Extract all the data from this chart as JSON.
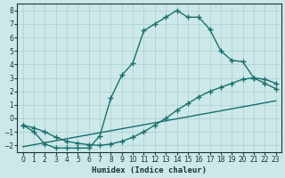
{
  "xlabel": "Humidex (Indice chaleur)",
  "bg_color": "#cce8e8",
  "line_color": "#1a6e6e",
  "grid_color": "#aacfcf",
  "xlim": [
    -0.5,
    23.5
  ],
  "ylim": [
    -2.5,
    8.5
  ],
  "xticks": [
    0,
    1,
    2,
    3,
    4,
    5,
    6,
    7,
    8,
    9,
    10,
    11,
    12,
    13,
    14,
    15,
    16,
    17,
    18,
    19,
    20,
    21,
    22,
    23
  ],
  "yticks": [
    -2,
    -1,
    0,
    1,
    2,
    3,
    4,
    5,
    6,
    7,
    8
  ],
  "line1_x": [
    0,
    1,
    2,
    3,
    4,
    5,
    6,
    7,
    8,
    9,
    10,
    11,
    12,
    13,
    14,
    15,
    16,
    17,
    18,
    19,
    20,
    21,
    22,
    23
  ],
  "line1_y": [
    -0.5,
    -1.0,
    -1.9,
    -2.2,
    -2.2,
    -2.2,
    -2.2,
    -1.3,
    1.5,
    3.2,
    4.1,
    6.5,
    7.0,
    7.5,
    8.0,
    7.5,
    7.5,
    6.6,
    5.0,
    4.3,
    4.2,
    3.0,
    2.6,
    2.2
  ],
  "line2_x": [
    0,
    1,
    2,
    3,
    4,
    5,
    6,
    7,
    8,
    9,
    10,
    11,
    12,
    13,
    14,
    15,
    16,
    17,
    18,
    19,
    20,
    21,
    22,
    23
  ],
  "line2_y": [
    -0.5,
    -0.7,
    -1.0,
    -1.4,
    -1.7,
    -1.85,
    -1.95,
    -2.0,
    -1.9,
    -1.7,
    -1.4,
    -1.0,
    -0.5,
    0.0,
    0.6,
    1.1,
    1.6,
    2.0,
    2.3,
    2.6,
    2.9,
    3.0,
    2.9,
    2.6
  ],
  "line3_x": [
    0,
    23
  ],
  "line3_y": [
    -2.1,
    1.3
  ],
  "marker": "+",
  "markersize": 4,
  "linewidth": 1.0
}
